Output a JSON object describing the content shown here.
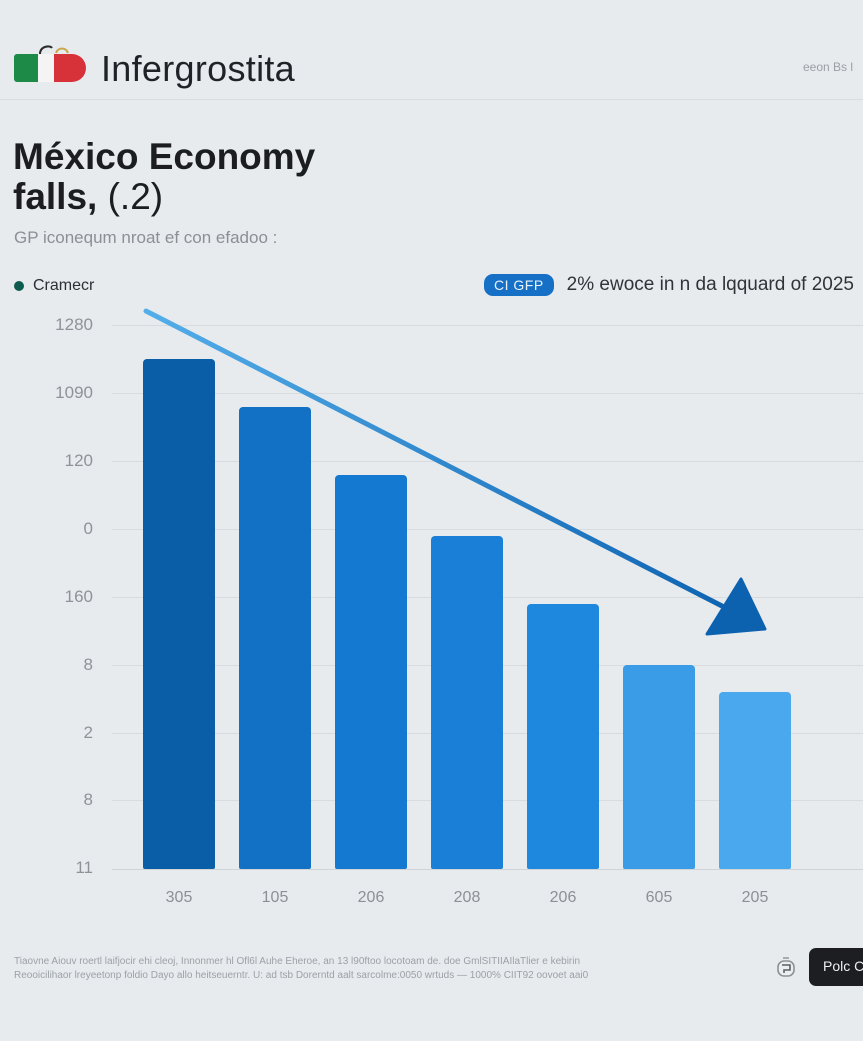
{
  "header": {
    "brand": "Infergrostita",
    "right_text": "eeon Bs l",
    "logo_icon": "flag-bag-logo-icon"
  },
  "title": {
    "main": "México Economy",
    "line2_bold": "falls,",
    "line2_light": " (.2)"
  },
  "subtitle": "GP iconequm nroat ef con efadoo :",
  "legend": {
    "label": "Cramecr",
    "color": "#0f5b50"
  },
  "note": {
    "pill": "CI GFP",
    "text": "2% ewoce in n da lqquard of 2025"
  },
  "chart_data": {
    "type": "bar",
    "title": "México Economy falls, (.2)",
    "subtitle": "GP iconequm nroat ef con efadoo :",
    "xlabel": "",
    "ylabel": "",
    "legend": [
      "Cramecr"
    ],
    "legend_position": "top-left",
    "grid": true,
    "y_tick_labels": [
      "1280",
      "1090",
      "120",
      "0",
      "160",
      "8",
      "2",
      "8",
      "11"
    ],
    "categories": [
      "305",
      "105",
      "206",
      "208",
      "206",
      "605",
      "205"
    ],
    "values": [
      7.5,
      6.8,
      5.8,
      4.9,
      3.9,
      3.0,
      2.6
    ],
    "value_scale_note": "bar heights in gridline units above baseline (8 gridline intervals total)",
    "ylim": [
      0,
      8
    ],
    "bar_colors": [
      "#0a5ea8",
      "#1271c4",
      "#1479d0",
      "#1a80d7",
      "#1d88de",
      "#3a9ce6",
      "#4aa8ee"
    ],
    "annotations": [
      {
        "type": "trend-arrow",
        "direction": "down",
        "color_start": "#54aee9",
        "color_end": "#0d62b0"
      },
      {
        "type": "callout",
        "pill": "CI GFP",
        "text": "2% ewoce in n da lqquard of 2025"
      }
    ]
  },
  "footer": {
    "line1": "Tiaovne Aiouv roertl laifjocir ehi cleoj, Innonmer hl Ofl6l Auhe Eheroe, an 13 l90ftoo locotoam de. doe GmlSITIIAIlaTlier e kebirin",
    "line2": "Reooicilihaor lreyeetonp foldio Dayo allo heitseuerntr. U: ad tsb Dorerntd aalt sarcolme:0050 wrtuds — 1000% CIIT92 oovoet aai0",
    "share_icon": "share-icon",
    "cta_label": "Polc C"
  }
}
